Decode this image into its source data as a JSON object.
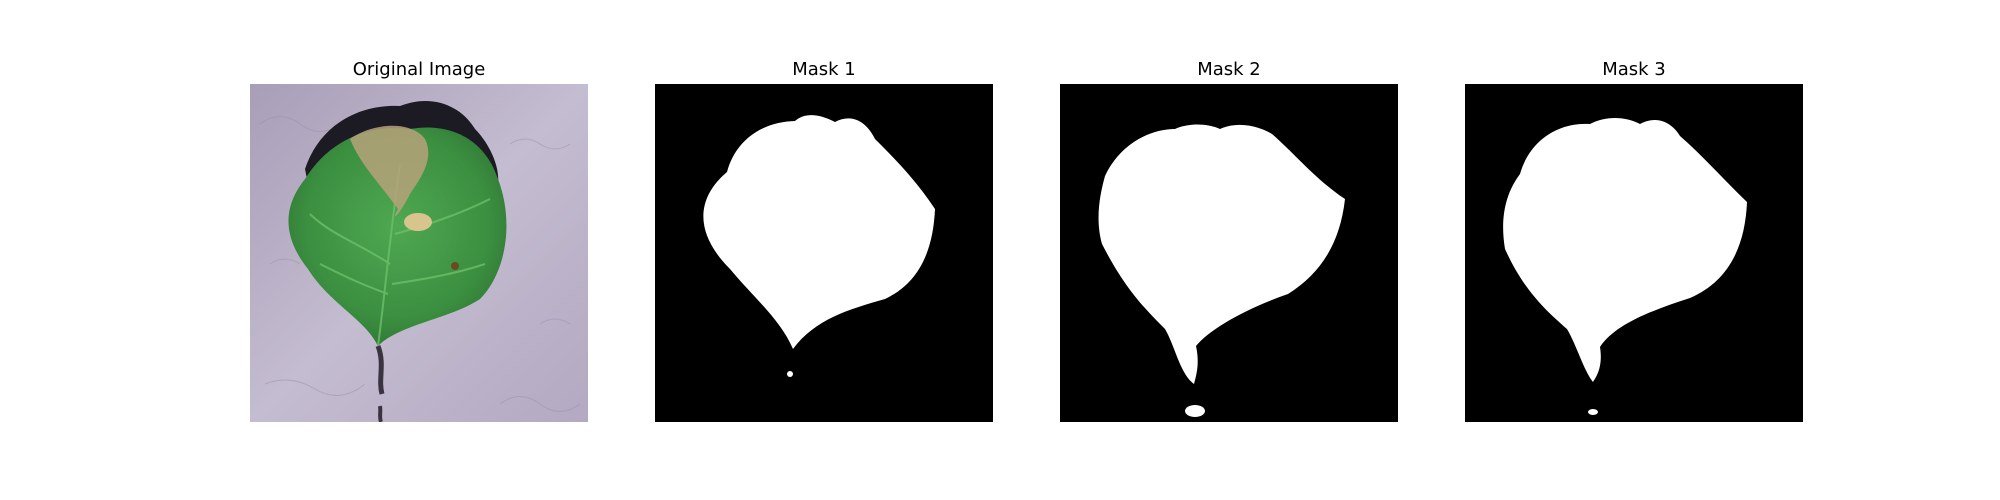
{
  "figure": {
    "panels": [
      {
        "title": "Original Image",
        "kind": "photo"
      },
      {
        "title": "Mask 1",
        "kind": "mask"
      },
      {
        "title": "Mask 2",
        "kind": "mask"
      },
      {
        "title": "Mask 3",
        "kind": "mask"
      }
    ],
    "colors": {
      "mask_background": "#000000",
      "mask_foreground": "#ffffff",
      "leaf_green": "#3f9a45",
      "photo_background": "#b6acc3"
    }
  }
}
